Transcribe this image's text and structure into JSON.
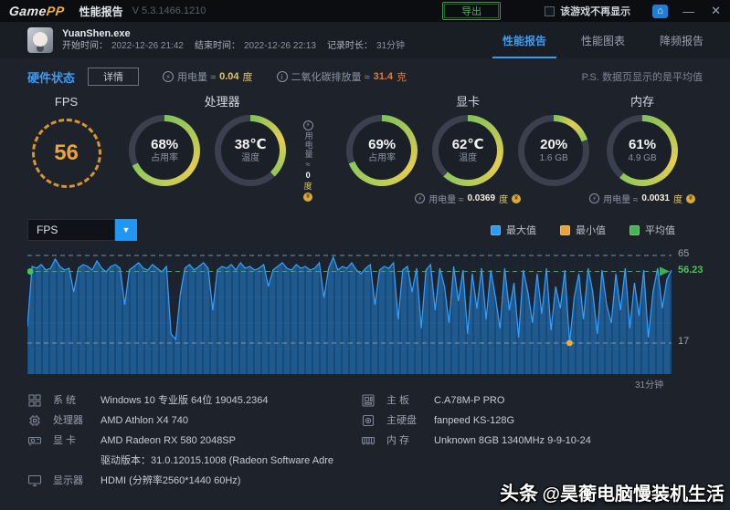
{
  "titlebar": {
    "app_name": "Game",
    "app_name2": "PP",
    "page_title": "性能报告",
    "version": "V 5.3.1466.1210",
    "export_button": "导出",
    "dont_show_label": "该游戏不再显示",
    "home_glyph": "⌂",
    "minimize_glyph": "—",
    "close_glyph": "✕"
  },
  "header": {
    "process_name": "YuanShen.exe",
    "start_label": "开始时间：",
    "start_time": "2022-12-26 21:42",
    "end_label": "结束时间：",
    "end_time": "2022-12-26 22:13",
    "duration_label": "记录时长：",
    "duration": "31分钟",
    "tabs": [
      {
        "label": "性能报告",
        "active": true
      },
      {
        "label": "性能图表",
        "active": false
      },
      {
        "label": "降频报告",
        "active": false
      }
    ]
  },
  "status_row": {
    "section_title": "硬件状态",
    "detail_button": "详情",
    "power_icon_glyph": "⚡",
    "power_label": "用电量 ≈",
    "power_value": "0.04",
    "power_unit": "度",
    "co2_icon_glyph": "i",
    "co2_label": "二氧化碳排放量 ≈",
    "co2_value": "31.4",
    "co2_unit": "克",
    "note": "P.S. 数据页显示的是平均值"
  },
  "gauges": {
    "fps": {
      "label": "FPS",
      "value": "56"
    },
    "cpu": {
      "label": "处理器",
      "rings": [
        {
          "value": "68%",
          "sub": "占用率",
          "pct": 68
        },
        {
          "value": "38℃",
          "sub": "温度",
          "pct": 38
        }
      ],
      "power_label": "用电量",
      "approx": "≈",
      "power_value": "0",
      "power_unit": "度"
    },
    "gpu": {
      "label": "显卡",
      "rings": [
        {
          "value": "69%",
          "sub": "占用率",
          "pct": 69
        },
        {
          "value": "62℃",
          "sub": "温度",
          "pct": 62
        },
        {
          "value": "20%",
          "sub": "1.6 GB",
          "pct": 20
        }
      ],
      "power_label": "用电量 ≈",
      "power_value": "0.0369",
      "power_unit": "度"
    },
    "mem": {
      "label": "内存",
      "rings": [
        {
          "value": "61%",
          "sub": "4.9 GB",
          "pct": 61
        }
      ],
      "power_label": "用电量 ≈",
      "power_value": "0.0031",
      "power_unit": "度"
    }
  },
  "chart_section": {
    "metric_selector": "FPS",
    "dropdown_glyph": "▼",
    "legend": [
      {
        "label": "最大值",
        "color": "#2e9bf0"
      },
      {
        "label": "最小值",
        "color": "#e8a33d"
      },
      {
        "label": "平均值",
        "color": "#46b450"
      }
    ],
    "x_axis_label": "31分钟"
  },
  "chart_data": {
    "type": "area",
    "title": "FPS",
    "ylabel": "FPS",
    "xlabel": "31分钟",
    "ylim": [
      0,
      70
    ],
    "grid": true,
    "legend_position": "top-right",
    "markers": {
      "max": 65,
      "avg": 56.23,
      "min": 17
    },
    "values": [
      26,
      59,
      58,
      60,
      57,
      58,
      63,
      59,
      57,
      58,
      45,
      58,
      60,
      59,
      57,
      62,
      58,
      56,
      59,
      60,
      58,
      38,
      57,
      59,
      61,
      58,
      57,
      60,
      58,
      56,
      59,
      22,
      19,
      44,
      58,
      60,
      57,
      59,
      61,
      58,
      35,
      57,
      59,
      58,
      60,
      57,
      61,
      58,
      59,
      57,
      58,
      60,
      48,
      57,
      59,
      61,
      58,
      57,
      60,
      58,
      59,
      57,
      58,
      61,
      42,
      58,
      64,
      57,
      59,
      58,
      61,
      57,
      55,
      58,
      60,
      38,
      57,
      59,
      58,
      61,
      30,
      57,
      59,
      45,
      58,
      25,
      57,
      60,
      35,
      58,
      48,
      28,
      59,
      40,
      57,
      22,
      55,
      36,
      58,
      30,
      57,
      42,
      25,
      58,
      35,
      50,
      20,
      57,
      45,
      28,
      55,
      33,
      58,
      24,
      48,
      36,
      57,
      17,
      42,
      55,
      30,
      58,
      45,
      22,
      57,
      38,
      28,
      55,
      35,
      58,
      25,
      50,
      32,
      57,
      20,
      45,
      58,
      36,
      52,
      57
    ]
  },
  "specs": {
    "left": [
      {
        "icon": "windows-icon",
        "label": "系 统",
        "value": "Windows 10 专业版 64位 19045.2364"
      },
      {
        "icon": "cpu-icon",
        "label": "处理器",
        "value": "AMD Athlon X4 740"
      },
      {
        "icon": "gpu-icon",
        "label": "显 卡",
        "value": "AMD Radeon RX 580 2048SP",
        "extra": "驱动版本：31.0.12015.1008 (Radeon Software Adre"
      },
      {
        "icon": "monitor-icon",
        "label": "显示器",
        "value": "HDMI (分辨率2560*1440 60Hz)"
      }
    ],
    "right": [
      {
        "icon": "motherboard-icon",
        "label": "主 板",
        "value": "C.A78M-P PRO"
      },
      {
        "icon": "disk-icon",
        "label": "主硬盘",
        "value": "fanpeed KS-128G"
      },
      {
        "icon": "ram-icon",
        "label": "内 存",
        "value": "Unknown 8GB 1340MHz 9-9-10-24"
      }
    ]
  },
  "watermark": {
    "prefix": "头条",
    "text": "@昊蘅电脑慢装机生活"
  }
}
